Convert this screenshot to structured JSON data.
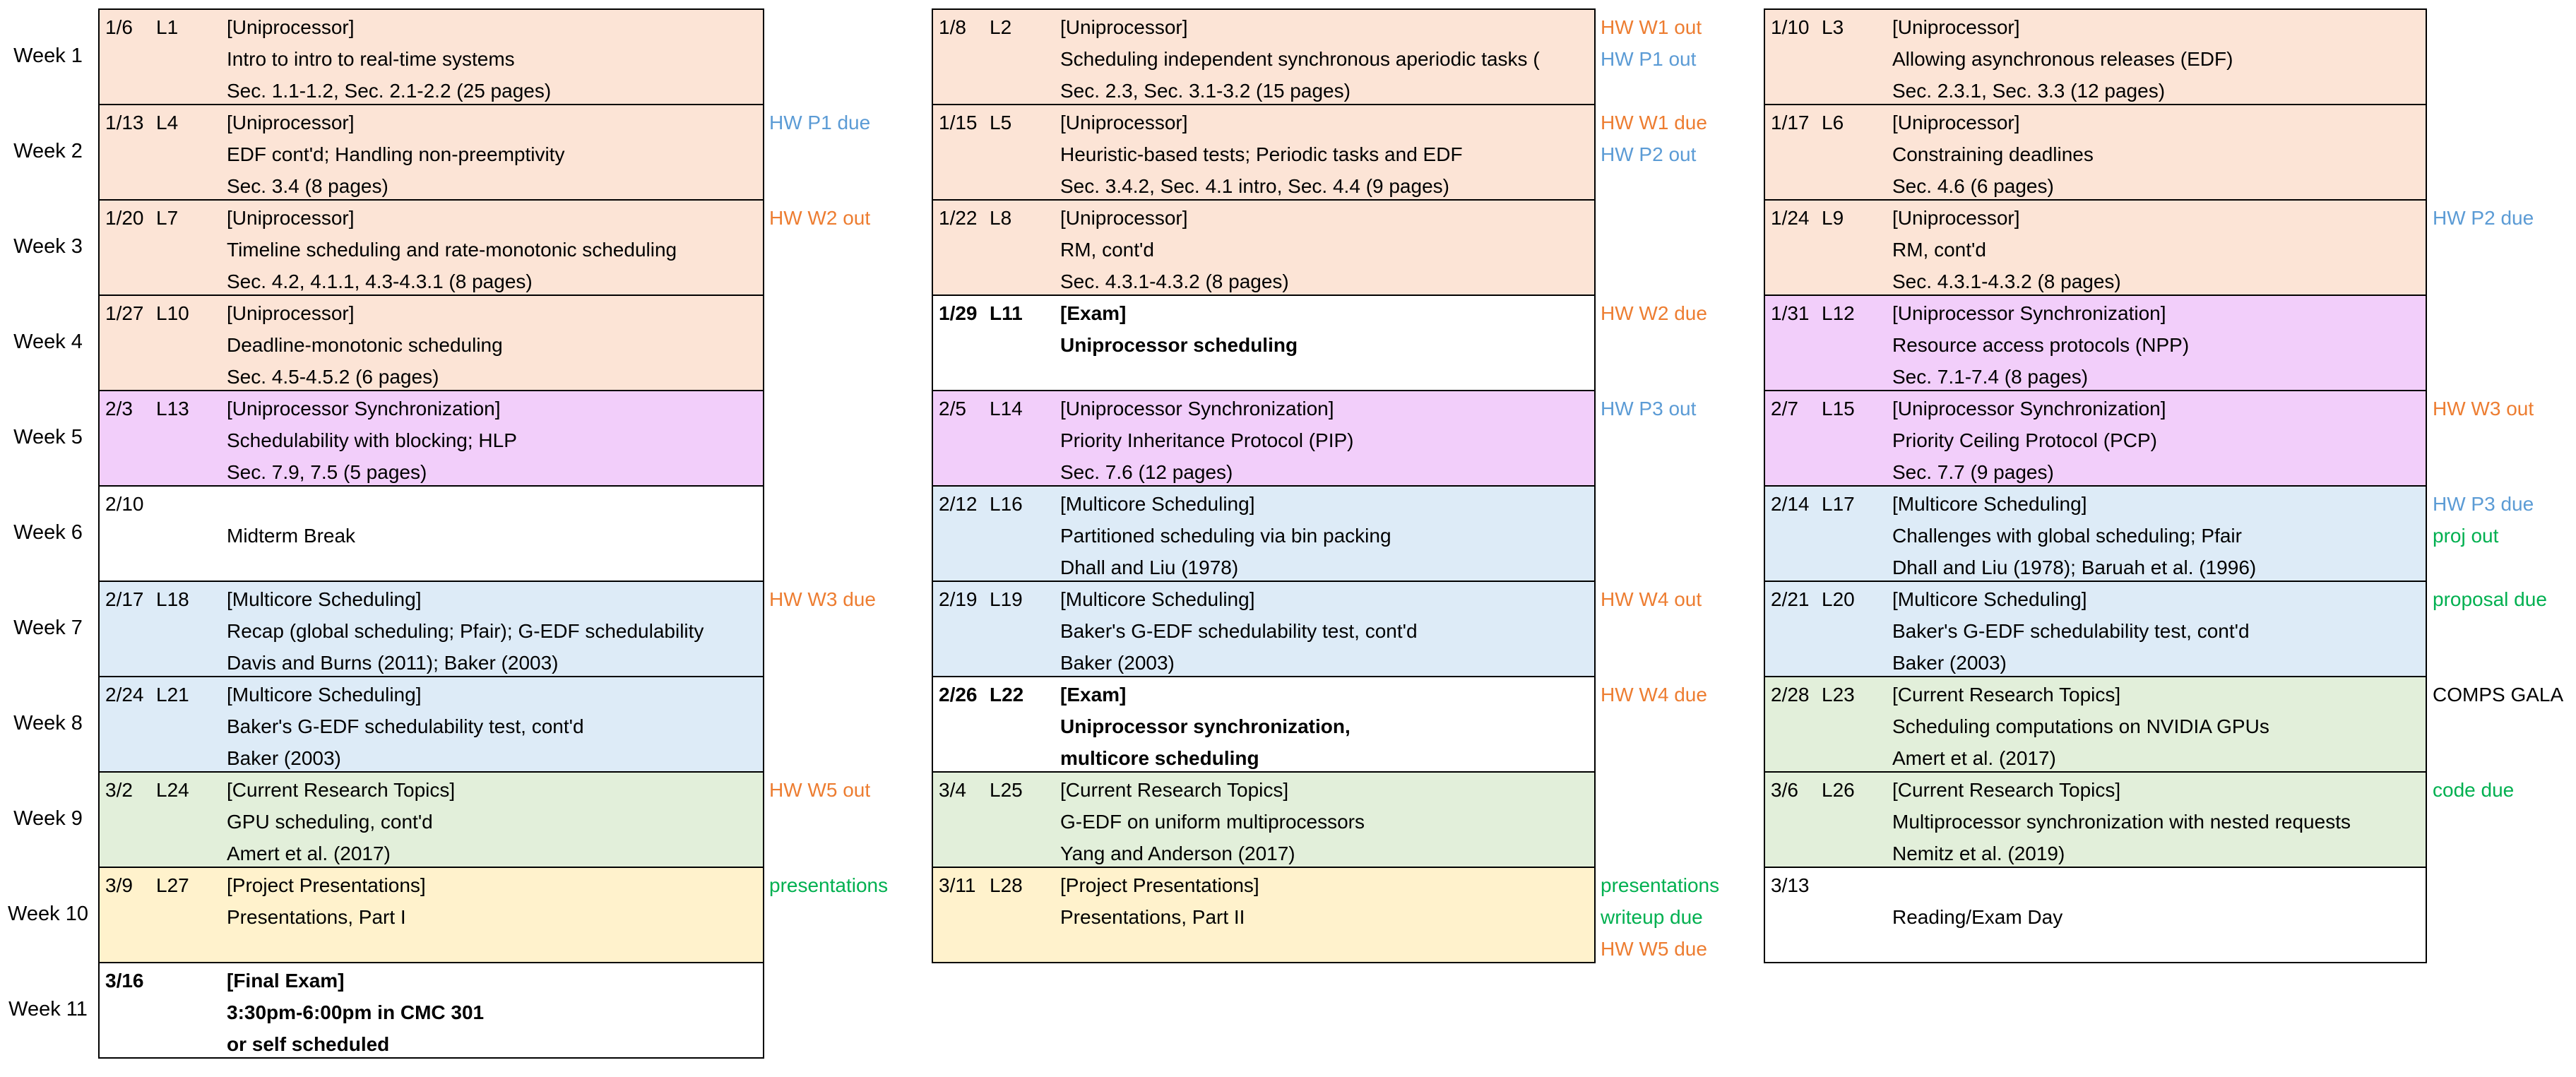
{
  "weeks": [
    "Week 1",
    "Week 2",
    "Week 3",
    "Week 4",
    "Week 5",
    "Week 6",
    "Week 7",
    "Week 8",
    "Week 9",
    "Week 10",
    "Week 11"
  ],
  "colors": {
    "uni": "#FCE4D6",
    "sync": "#F2CEFA",
    "multi": "#DDEBF7",
    "research": "#E2EFDA",
    "proj": "#FFF2CC",
    "none": "#FFFFFF",
    "note_orange": "#ED7D31",
    "note_blue": "#5B9BD5",
    "note_green": "#00B050"
  },
  "columns": [
    {
      "rows": [
        {
          "date": "1/6",
          "lecture": "L1",
          "color": "uni",
          "bold": false,
          "lines": [
            "[Uniprocessor]",
            "Intro to intro to real-time systems",
            "Sec. 1.1-1.2, Sec. 2.1-2.2 (25 pages)"
          ],
          "notes": []
        },
        {
          "date": "1/13",
          "lecture": "L4",
          "color": "uni",
          "bold": false,
          "lines": [
            "[Uniprocessor]",
            "EDF cont'd; Handling non-preemptivity",
            "Sec. 3.4 (8 pages)"
          ],
          "notes": [
            {
              "text": "HW P1 due",
              "color": "blue"
            }
          ]
        },
        {
          "date": "1/20",
          "lecture": "L7",
          "color": "uni",
          "bold": false,
          "lines": [
            "[Uniprocessor]",
            "Timeline scheduling and rate-monotonic scheduling",
            "Sec. 4.2, 4.1.1, 4.3-4.3.1 (8 pages)"
          ],
          "notes": [
            {
              "text": "HW W2 out",
              "color": "orange"
            }
          ]
        },
        {
          "date": "1/27",
          "lecture": "L10",
          "color": "uni",
          "bold": false,
          "lines": [
            "[Uniprocessor]",
            "Deadline-monotonic scheduling",
            "Sec. 4.5-4.5.2 (6 pages)"
          ],
          "notes": []
        },
        {
          "date": "2/3",
          "lecture": "L13",
          "color": "sync",
          "bold": false,
          "lines": [
            "[Uniprocessor Synchronization]",
            "Schedulability with blocking; HLP",
            "Sec. 7.9, 7.5 (5 pages)"
          ],
          "notes": []
        },
        {
          "date": "2/10",
          "lecture": "",
          "color": "none",
          "bold": false,
          "lines": [
            "",
            "Midterm Break",
            ""
          ],
          "notes": []
        },
        {
          "date": "2/17",
          "lecture": "L18",
          "color": "multi",
          "bold": false,
          "lines": [
            "[Multicore Scheduling]",
            "Recap (global scheduling; Pfair); G-EDF schedulability",
            "Davis and Burns (2011); Baker (2003)"
          ],
          "notes": [
            {
              "text": "HW W3 due",
              "color": "orange"
            }
          ]
        },
        {
          "date": "2/24",
          "lecture": "L21",
          "color": "multi",
          "bold": false,
          "lines": [
            "[Multicore Scheduling]",
            "Baker's G-EDF schedulability test, cont'd",
            "Baker (2003)"
          ],
          "notes": []
        },
        {
          "date": "3/2",
          "lecture": "L24",
          "color": "research",
          "bold": false,
          "lines": [
            "[Current Research Topics]",
            "GPU scheduling, cont'd",
            "Amert et al. (2017)"
          ],
          "notes": [
            {
              "text": "HW W5 out",
              "color": "orange"
            }
          ]
        },
        {
          "date": "3/9",
          "lecture": "L27",
          "color": "proj",
          "bold": false,
          "lines": [
            "[Project Presentations]",
            "Presentations, Part I",
            ""
          ],
          "notes": [
            {
              "text": "presentations",
              "color": "green"
            }
          ]
        },
        {
          "date": "3/16",
          "lecture": "",
          "color": "none",
          "bold": true,
          "lines": [
            "[Final Exam]",
            "3:30pm-6:00pm in CMC 301",
            "or self scheduled"
          ],
          "notes": []
        }
      ]
    },
    {
      "rows": [
        {
          "date": "1/8",
          "lecture": "L2",
          "color": "uni",
          "bold": false,
          "lines": [
            "[Uniprocessor]",
            "Scheduling independent synchronous aperiodic tasks (",
            "Sec. 2.3, Sec. 3.1-3.2 (15 pages)"
          ],
          "notes": [
            {
              "text": "HW W1 out",
              "color": "orange"
            },
            {
              "text": "HW P1 out",
              "color": "blue"
            }
          ]
        },
        {
          "date": "1/15",
          "lecture": "L5",
          "color": "uni",
          "bold": false,
          "lines": [
            "[Uniprocessor]",
            "Heuristic-based tests; Periodic tasks and EDF",
            "Sec. 3.4.2, Sec. 4.1 intro, Sec. 4.4 (9 pages)"
          ],
          "notes": [
            {
              "text": "HW W1 due",
              "color": "orange"
            },
            {
              "text": "HW P2 out",
              "color": "blue"
            }
          ]
        },
        {
          "date": "1/22",
          "lecture": "L8",
          "color": "uni",
          "bold": false,
          "lines": [
            "[Uniprocessor]",
            "RM, cont'd",
            "Sec. 4.3.1-4.3.2 (8 pages)"
          ],
          "notes": []
        },
        {
          "date": "1/29",
          "lecture": "L11",
          "color": "none",
          "bold": true,
          "lines": [
            "[Exam]",
            "Uniprocessor scheduling",
            ""
          ],
          "notes": [
            {
              "text": "HW W2 due",
              "color": "orange"
            }
          ]
        },
        {
          "date": "2/5",
          "lecture": "L14",
          "color": "sync",
          "bold": false,
          "lines": [
            "[Uniprocessor Synchronization]",
            "Priority Inheritance Protocol (PIP)",
            "Sec. 7.6 (12 pages)"
          ],
          "notes": [
            {
              "text": "HW P3 out",
              "color": "blue"
            }
          ]
        },
        {
          "date": "2/12",
          "lecture": "L16",
          "color": "multi",
          "bold": false,
          "lines": [
            "[Multicore Scheduling]",
            "Partitioned scheduling via bin packing",
            "Dhall and Liu (1978)"
          ],
          "notes": []
        },
        {
          "date": "2/19",
          "lecture": "L19",
          "color": "multi",
          "bold": false,
          "lines": [
            "[Multicore Scheduling]",
            "Baker's G-EDF schedulability test, cont'd",
            "Baker (2003)"
          ],
          "notes": [
            {
              "text": "HW W4 out",
              "color": "orange"
            }
          ]
        },
        {
          "date": "2/26",
          "lecture": "L22",
          "color": "none",
          "bold": true,
          "lines": [
            "[Exam]",
            "Uniprocessor synchronization,",
            "multicore scheduling"
          ],
          "notes": [
            {
              "text": "HW W4 due",
              "color": "orange"
            }
          ]
        },
        {
          "date": "3/4",
          "lecture": "L25",
          "color": "research",
          "bold": false,
          "lines": [
            "[Current Research Topics]",
            "G-EDF on uniform multiprocessors",
            "Yang and Anderson (2017)"
          ],
          "notes": []
        },
        {
          "date": "3/11",
          "lecture": "L28",
          "color": "proj",
          "bold": false,
          "lines": [
            "[Project Presentations]",
            "Presentations, Part II",
            ""
          ],
          "notes": [
            {
              "text": "presentations",
              "color": "green"
            },
            {
              "text": "writeup due",
              "color": "green"
            },
            {
              "text": "HW W5 due",
              "color": "orange"
            }
          ]
        }
      ]
    },
    {
      "rows": [
        {
          "date": "1/10",
          "lecture": "L3",
          "color": "uni",
          "bold": false,
          "lines": [
            "[Uniprocessor]",
            "Allowing asynchronous releases (EDF)",
            "Sec. 2.3.1, Sec. 3.3 (12 pages)"
          ],
          "notes": []
        },
        {
          "date": "1/17",
          "lecture": "L6",
          "color": "uni",
          "bold": false,
          "lines": [
            "[Uniprocessor]",
            "Constraining deadlines",
            "Sec. 4.6 (6 pages)"
          ],
          "notes": []
        },
        {
          "date": "1/24",
          "lecture": "L9",
          "color": "uni",
          "bold": false,
          "lines": [
            "[Uniprocessor]",
            "RM, cont'd",
            "Sec. 4.3.1-4.3.2 (8 pages)"
          ],
          "notes": [
            {
              "text": "HW P2 due",
              "color": "blue"
            }
          ]
        },
        {
          "date": "1/31",
          "lecture": "L12",
          "color": "sync",
          "bold": false,
          "lines": [
            "[Uniprocessor Synchronization]",
            "Resource access protocols (NPP)",
            "Sec. 7.1-7.4 (8 pages)"
          ],
          "notes": []
        },
        {
          "date": "2/7",
          "lecture": "L15",
          "color": "sync",
          "bold": false,
          "lines": [
            "[Uniprocessor Synchronization]",
            "Priority Ceiling Protocol (PCP)",
            "Sec. 7.7 (9 pages)"
          ],
          "notes": [
            {
              "text": "HW W3 out",
              "color": "orange"
            }
          ]
        },
        {
          "date": "2/14",
          "lecture": "L17",
          "color": "multi",
          "bold": false,
          "lines": [
            "[Multicore Scheduling]",
            "Challenges with global scheduling; Pfair",
            "Dhall and Liu (1978); Baruah et al. (1996)"
          ],
          "notes": [
            {
              "text": "HW P3 due",
              "color": "blue"
            },
            {
              "text": "proj out",
              "color": "green"
            }
          ]
        },
        {
          "date": "2/21",
          "lecture": "L20",
          "color": "multi",
          "bold": false,
          "lines": [
            "[Multicore Scheduling]",
            "Baker's G-EDF schedulability test, cont'd",
            "Baker (2003)"
          ],
          "notes": [
            {
              "text": "proposal due",
              "color": "green"
            }
          ]
        },
        {
          "date": "2/28",
          "lecture": "L23",
          "color": "research",
          "bold": false,
          "lines": [
            "[Current Research Topics]",
            "Scheduling computations on NVIDIA GPUs",
            "Amert et al. (2017)"
          ],
          "notes": [
            {
              "text": "COMPS GALA",
              "color": "black"
            }
          ]
        },
        {
          "date": "3/6",
          "lecture": "L26",
          "color": "research",
          "bold": false,
          "lines": [
            "[Current Research Topics]",
            "Multiprocessor synchronization with nested requests",
            "Nemitz et al. (2019)"
          ],
          "notes": [
            {
              "text": "code due",
              "color": "green"
            }
          ]
        },
        {
          "date": "3/13",
          "lecture": "",
          "color": "none",
          "bold": false,
          "lines": [
            "",
            "Reading/Exam Day",
            ""
          ],
          "notes": []
        }
      ]
    }
  ]
}
